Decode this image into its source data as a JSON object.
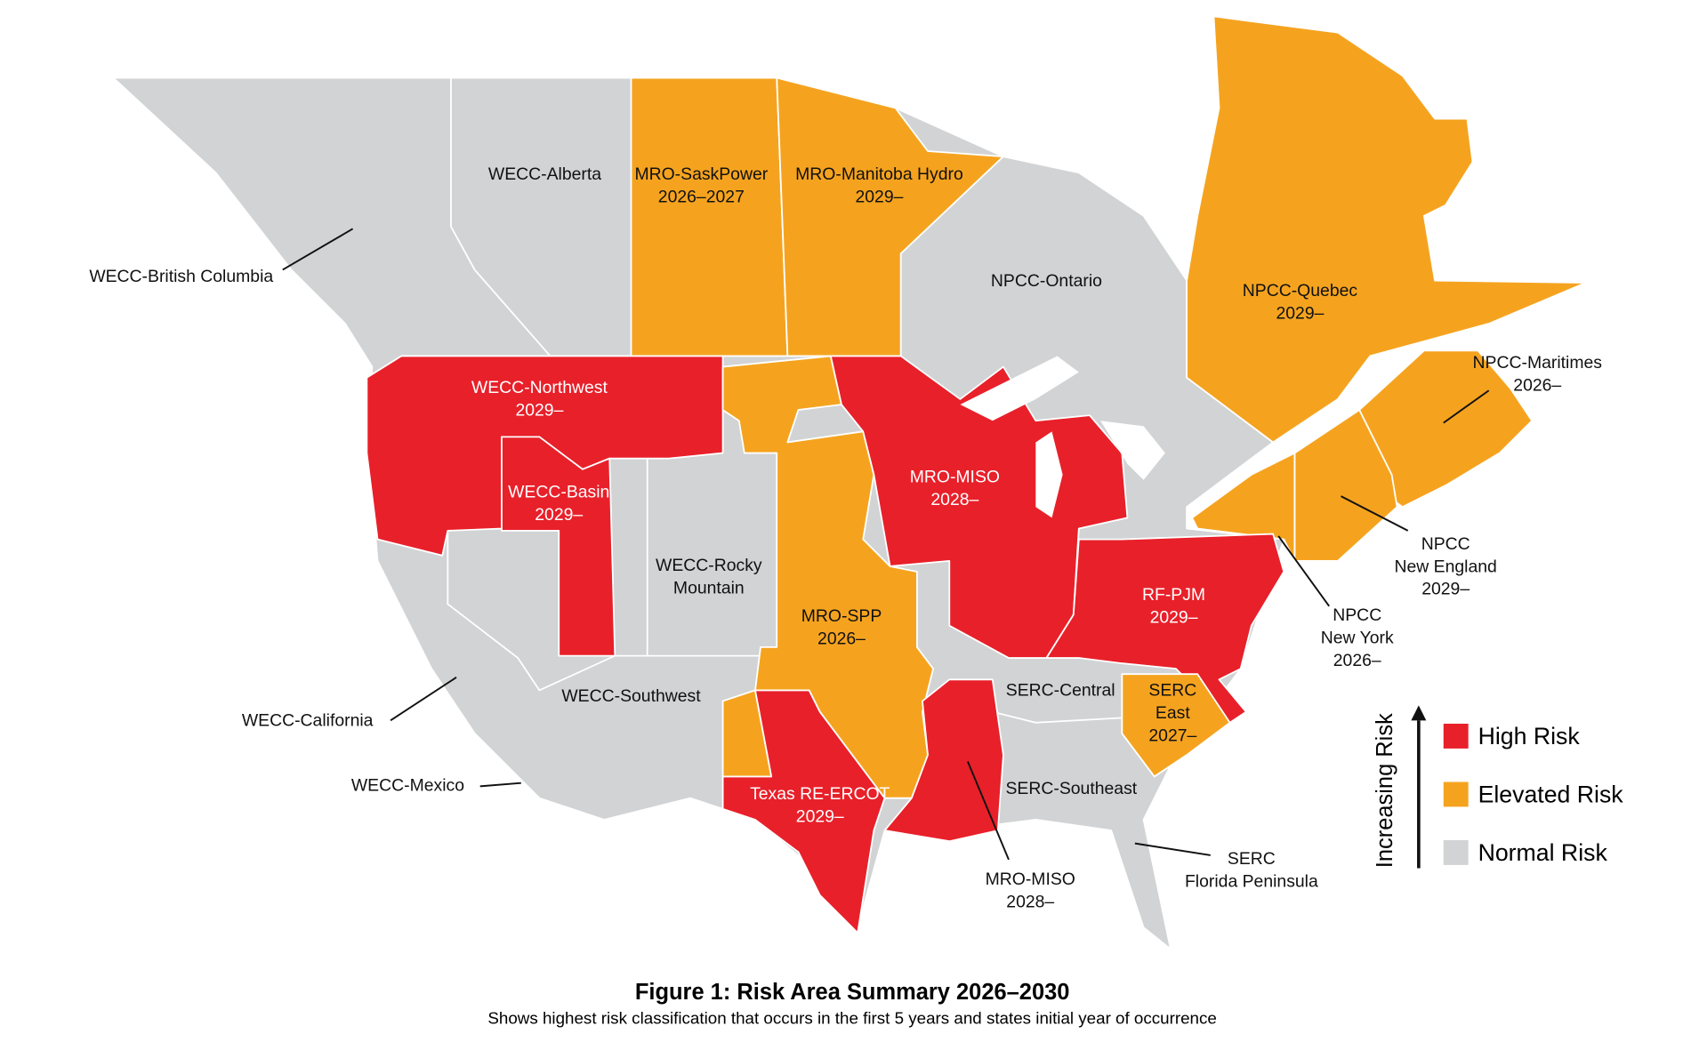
{
  "regions": [
    {
      "lines": [
        "WECC-Alberta"
      ]
    },
    {
      "lines": [
        "MRO-SaskPower",
        "2026–2027"
      ]
    },
    {
      "lines": [
        "MRO-Manitoba Hydro",
        "2029–"
      ]
    },
    {
      "lines": [
        "WECC-British Columbia"
      ]
    },
    {
      "lines": [
        "NPCC-Ontario"
      ]
    },
    {
      "lines": [
        "NPCC-Quebec",
        "2029–"
      ]
    },
    {
      "lines": [
        "NPCC-Maritimes",
        "2026–"
      ]
    },
    {
      "lines": [
        "WECC-Northwest",
        "2029–"
      ]
    },
    {
      "lines": [
        "WECC-Basin",
        "2029–"
      ]
    },
    {
      "lines": [
        "MRO-MISO",
        "2028–"
      ]
    },
    {
      "lines": [
        "WECC-Rocky",
        "Mountain"
      ]
    },
    {
      "lines": [
        "MRO-SPP",
        "2026–"
      ]
    },
    {
      "lines": [
        "RF-PJM",
        "2029–"
      ]
    },
    {
      "lines": [
        "NPCC",
        "New England",
        "2029–"
      ]
    },
    {
      "lines": [
        "NPCC",
        "New York",
        "2026–"
      ]
    },
    {
      "lines": [
        "WECC-California"
      ]
    },
    {
      "lines": [
        "WECC-Southwest"
      ]
    },
    {
      "lines": [
        "SERC-Central"
      ]
    },
    {
      "lines": [
        "SERC",
        "East",
        "2027–"
      ]
    },
    {
      "lines": [
        "WECC-Mexico"
      ]
    },
    {
      "lines": [
        "Texas RE-ERCOT",
        "2029–"
      ]
    },
    {
      "lines": [
        "SERC-Southeast"
      ]
    },
    {
      "lines": [
        "MRO-MISO",
        "2028–"
      ]
    },
    {
      "lines": [
        "SERC",
        "Florida Peninsula"
      ]
    }
  ],
  "legend": {
    "axis_label": "Increasing Risk",
    "items": [
      "High Risk",
      "Elevated Risk",
      "Normal Risk"
    ]
  },
  "caption": {
    "title": "Figure 1: Risk Area Summary 2026–2030",
    "subtitle": "Shows highest risk classification that occurs in the first 5 years and states initial year of occurrence"
  }
}
